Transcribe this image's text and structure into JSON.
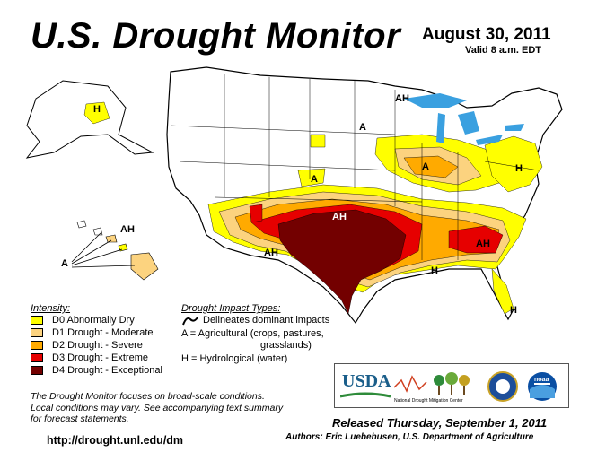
{
  "title": "U.S. Drought Monitor",
  "date": "August 30, 2011",
  "valid": "Valid 8 a.m. EDT",
  "legend": {
    "title": "Intensity:",
    "items": [
      {
        "label": "D0 Abnormally Dry",
        "color": "#ffff00"
      },
      {
        "label": "D1 Drought - Moderate",
        "color": "#fcd37f"
      },
      {
        "label": "D2 Drought - Severe",
        "color": "#ffaa00"
      },
      {
        "label": "D3 Drought - Extreme",
        "color": "#e60000"
      },
      {
        "label": "D4 Drought - Exceptional",
        "color": "#730000"
      }
    ]
  },
  "impacts": {
    "title": "Drought Impact Types:",
    "delineates": "Delineates dominant impacts",
    "a_line1": "A = Agricultural (crops, pastures,",
    "a_line2": "grasslands)",
    "h": "H = Hydrological (water)"
  },
  "map_labels": {
    "A": "A",
    "H": "H",
    "AH": "AH"
  },
  "note": {
    "line1": "The Drought Monitor focuses on broad-scale conditions.",
    "line2": "Local conditions may vary. See accompanying text summary",
    "line3": "for forecast statements."
  },
  "url": "http://drought.unl.edu/dm",
  "released": "Released Thursday, September 1, 2011",
  "authors": "Authors: Eric Luebehusen, U.S. Department of Agriculture",
  "logos": {
    "usda": "USDA",
    "ndmc": "National Drought Mitigation Center",
    "noaa": "noaa"
  },
  "colors": {
    "water": "#3aa0e0",
    "land": "#ffffff",
    "border": "#000000"
  }
}
